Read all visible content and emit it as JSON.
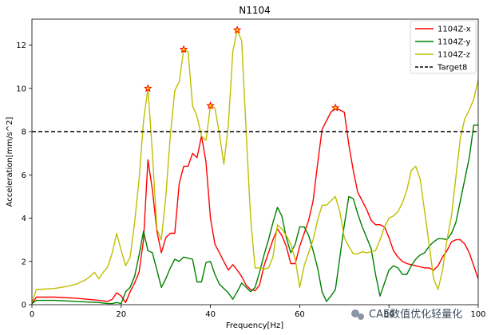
{
  "chart_data": {
    "type": "line",
    "title": "N1104",
    "xlabel": "Frequency[Hz]",
    "ylabel": "Acceleration[mm/s^2]",
    "xlim": [
      0,
      100
    ],
    "ylim": [
      0,
      13.2
    ],
    "xticks": [
      0,
      20,
      40,
      60,
      80,
      100
    ],
    "xtick_labels": [
      "0",
      "20",
      "40",
      "60",
      "80",
      "100"
    ],
    "yticks": [
      0,
      2,
      4,
      6,
      8,
      10,
      12
    ],
    "ytick_labels": [
      "0",
      "2",
      "4",
      "6",
      "8",
      "10",
      "12"
    ],
    "grid": false,
    "legend_position": "top-right",
    "series": [
      {
        "name": "1104Z-x",
        "color": "#ff0000",
        "style": "solid",
        "x": [
          0,
          1,
          5,
          10,
          15,
          17,
          18,
          19,
          20,
          21,
          22,
          23,
          24,
          25,
          26,
          27,
          28,
          29,
          30,
          31,
          32,
          33,
          34,
          35,
          36,
          37,
          38,
          39,
          40,
          41,
          42,
          43,
          44,
          45,
          46,
          47,
          48,
          49,
          50,
          51,
          52,
          53,
          54,
          55,
          56,
          57,
          58,
          59,
          60,
          61,
          62,
          63,
          64,
          65,
          66,
          67,
          68,
          69,
          70,
          71,
          72,
          73,
          74,
          75,
          76,
          77,
          78,
          79,
          80,
          81,
          82,
          83,
          84,
          85,
          86,
          87,
          88,
          89,
          90,
          91,
          92,
          93,
          94,
          95,
          96,
          97,
          98,
          99,
          100
        ],
        "y": [
          0.05,
          0.35,
          0.35,
          0.3,
          0.2,
          0.15,
          0.25,
          0.55,
          0.4,
          0.1,
          0.6,
          1.0,
          1.5,
          3.0,
          6.7,
          5.3,
          3.4,
          2.4,
          3.1,
          3.3,
          3.3,
          5.6,
          6.4,
          6.4,
          7.0,
          6.8,
          7.8,
          6.6,
          4.0,
          2.8,
          2.4,
          2.0,
          1.6,
          1.85,
          1.6,
          1.3,
          0.9,
          0.7,
          0.65,
          0.9,
          1.8,
          2.4,
          3.0,
          3.5,
          3.2,
          2.7,
          1.9,
          1.9,
          2.7,
          3.3,
          3.9,
          4.8,
          6.5,
          8.1,
          8.5,
          8.9,
          9.1,
          9.0,
          8.9,
          7.4,
          6.2,
          5.2,
          4.8,
          4.4,
          3.9,
          3.7,
          3.7,
          3.6,
          3.1,
          2.5,
          2.2,
          2.0,
          1.9,
          1.85,
          1.8,
          1.75,
          1.7,
          1.7,
          1.6,
          1.8,
          2.2,
          2.5,
          2.9,
          3.0,
          3.0,
          2.8,
          2.4,
          1.8,
          1.2
        ]
      },
      {
        "name": "1104Z-y",
        "color": "#008000",
        "style": "solid",
        "x": [
          0,
          1,
          5,
          10,
          15,
          17,
          18,
          19,
          20,
          21,
          22,
          23,
          24,
          25,
          26,
          27,
          28,
          29,
          30,
          31,
          32,
          33,
          34,
          35,
          36,
          37,
          38,
          39,
          40,
          41,
          42,
          43,
          44,
          45,
          46,
          47,
          48,
          49,
          50,
          51,
          52,
          53,
          54,
          55,
          56,
          57,
          58,
          59,
          60,
          61,
          62,
          63,
          64,
          65,
          66,
          67,
          68,
          69,
          70,
          71,
          72,
          73,
          74,
          75,
          76,
          77,
          78,
          79,
          80,
          81,
          82,
          83,
          84,
          85,
          86,
          87,
          88,
          89,
          90,
          91,
          92,
          93,
          94,
          95,
          96,
          97,
          98,
          99,
          100
        ],
        "y": [
          0.05,
          0.2,
          0.2,
          0.15,
          0.1,
          0.05,
          0.05,
          0.1,
          0.05,
          0.6,
          0.8,
          1.3,
          2.3,
          3.4,
          2.5,
          2.4,
          1.6,
          0.8,
          1.2,
          1.7,
          2.1,
          2.0,
          2.2,
          2.15,
          2.1,
          1.05,
          1.05,
          1.95,
          2.0,
          1.4,
          0.95,
          0.75,
          0.55,
          0.25,
          0.6,
          1.0,
          0.8,
          0.6,
          0.8,
          1.5,
          2.3,
          3.0,
          3.8,
          4.5,
          4.1,
          3.1,
          2.4,
          2.8,
          3.6,
          3.6,
          3.2,
          2.5,
          1.7,
          0.6,
          0.15,
          0.4,
          0.7,
          2.2,
          3.7,
          5.0,
          4.9,
          4.2,
          3.6,
          3.1,
          2.6,
          1.4,
          0.4,
          1.0,
          1.6,
          1.8,
          1.7,
          1.4,
          1.4,
          1.8,
          2.1,
          2.3,
          2.4,
          2.7,
          2.9,
          3.05,
          3.05,
          3.0,
          3.3,
          3.8,
          4.8,
          5.8,
          6.8,
          8.3,
          8.3
        ]
      },
      {
        "name": "1104Z-z",
        "color": "#bfbf00",
        "style": "solid",
        "x": [
          0,
          1,
          5,
          8,
          10,
          12,
          13,
          14,
          15,
          16,
          17,
          18,
          19,
          20,
          21,
          22,
          23,
          24,
          25,
          26,
          27,
          28,
          29,
          30,
          31,
          32,
          33,
          34,
          35,
          36,
          37,
          38,
          39,
          40,
          41,
          42,
          43,
          44,
          45,
          46,
          47,
          48,
          49,
          50,
          51,
          52,
          53,
          54,
          55,
          56,
          57,
          58,
          59,
          60,
          61,
          62,
          63,
          64,
          65,
          66,
          67,
          68,
          69,
          70,
          71,
          72,
          73,
          74,
          75,
          76,
          77,
          78,
          79,
          80,
          81,
          82,
          83,
          84,
          85,
          86,
          87,
          88,
          89,
          90,
          91,
          92,
          93,
          94,
          95,
          96,
          97,
          98,
          99,
          100
        ],
        "y": [
          0.1,
          0.7,
          0.75,
          0.85,
          0.95,
          1.15,
          1.3,
          1.5,
          1.2,
          1.5,
          1.75,
          2.4,
          3.3,
          2.5,
          1.8,
          2.2,
          3.8,
          5.8,
          8.5,
          10.0,
          7.0,
          3.5,
          3.0,
          5.0,
          7.8,
          9.9,
          10.3,
          11.8,
          11.7,
          9.2,
          8.7,
          7.8,
          7.6,
          9.2,
          9.1,
          7.9,
          6.5,
          8.3,
          11.7,
          12.7,
          12.2,
          8.0,
          4.0,
          1.7,
          1.7,
          1.65,
          1.7,
          2.2,
          3.7,
          3.5,
          3.2,
          2.8,
          2.1,
          0.8,
          1.8,
          2.4,
          3.0,
          3.9,
          4.6,
          4.6,
          4.8,
          5.0,
          4.3,
          3.1,
          2.7,
          2.35,
          2.35,
          2.45,
          2.4,
          2.45,
          2.5,
          3.0,
          3.6,
          4.0,
          4.1,
          4.3,
          4.7,
          5.3,
          6.2,
          6.4,
          5.8,
          4.3,
          2.8,
          1.2,
          0.7,
          1.6,
          3.0,
          4.1,
          5.9,
          7.7,
          8.6,
          9.0,
          9.5,
          10.4
        ]
      },
      {
        "name": "Target8",
        "color": "#000000",
        "style": "dashed",
        "x": [
          0,
          100
        ],
        "y": [
          8,
          8
        ]
      }
    ],
    "peak_markers": [
      {
        "x": 26,
        "y": 10.0
      },
      {
        "x": 34,
        "y": 11.8
      },
      {
        "x": 40,
        "y": 9.2
      },
      {
        "x": 46,
        "y": 12.7
      },
      {
        "x": 68,
        "y": 9.1
      }
    ],
    "peak_marker_color": "#ff0000",
    "peak_marker_fill": "#ffd700"
  },
  "watermark": {
    "text": "CAE数值优化轻量化"
  }
}
